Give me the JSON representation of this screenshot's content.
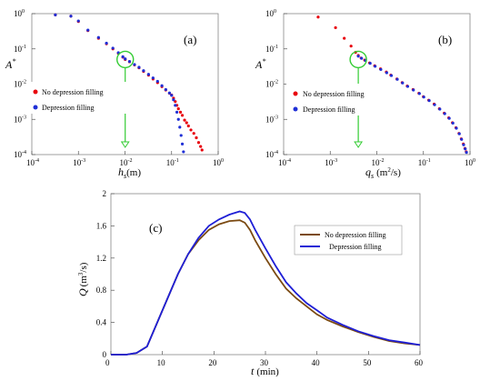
{
  "chart_data": [
    {
      "type": "scatter",
      "panel_label": "(a)",
      "x_scale": "log",
      "y_scale": "log",
      "xlim": [
        0.0001,
        1
      ],
      "ylim": [
        0.0001,
        1
      ],
      "x_ticks": [
        "10",
        "10",
        "10",
        "10",
        "10"
      ],
      "x_tick_exps": [
        "-4",
        "-3",
        "-2",
        "-1",
        "0"
      ],
      "y_ticks": [
        "10",
        "10",
        "10",
        "10",
        "10"
      ],
      "y_tick_exps": [
        "-4",
        "-3",
        "-2",
        "-1",
        "0"
      ],
      "ylabel": "A",
      "ylabel_sup": "*",
      "xlabel": "h",
      "xlabel_sub": "s",
      "xlabel_unit": "(m)",
      "legend_placement": "middle-left",
      "marker": {
        "x": 0.0101,
        "y": 0.05
      },
      "series": [
        {
          "name": "No depression filling",
          "color": "#e8000b",
          "points": [
            [
              0.00032,
              0.92
            ],
            [
              0.00069,
              0.85
            ],
            [
              0.001,
              0.6
            ],
            [
              0.0016,
              0.33
            ],
            [
              0.0027,
              0.2
            ],
            [
              0.004,
              0.14
            ],
            [
              0.0055,
              0.1
            ],
            [
              0.0072,
              0.075
            ],
            [
              0.009,
              0.058
            ],
            [
              0.0101,
              0.05
            ],
            [
              0.0125,
              0.043
            ],
            [
              0.016,
              0.035
            ],
            [
              0.02,
              0.029
            ],
            [
              0.025,
              0.023
            ],
            [
              0.032,
              0.018
            ],
            [
              0.04,
              0.014
            ],
            [
              0.05,
              0.011
            ],
            [
              0.062,
              0.0085
            ],
            [
              0.075,
              0.0068
            ],
            [
              0.09,
              0.0055
            ],
            [
              0.1,
              0.0049
            ],
            [
              0.11,
              0.004
            ],
            [
              0.12,
              0.0032
            ],
            [
              0.13,
              0.0025
            ],
            [
              0.14,
              0.002
            ],
            [
              0.155,
              0.0016
            ],
            [
              0.17,
              0.0013
            ],
            [
              0.19,
              0.00095
            ],
            [
              0.21,
              0.0008
            ],
            [
              0.23,
              0.00065
            ],
            [
              0.26,
              0.0005
            ],
            [
              0.3,
              0.0004
            ],
            [
              0.34,
              0.0003
            ],
            [
              0.38,
              0.00022
            ],
            [
              0.42,
              0.00017
            ],
            [
              0.45,
              0.000135
            ]
          ]
        },
        {
          "name": "Depression filling",
          "color": "#1f2fd6",
          "points": [
            [
              0.00032,
              0.92
            ],
            [
              0.00069,
              0.85
            ],
            [
              0.001,
              0.62
            ],
            [
              0.0016,
              0.34
            ],
            [
              0.0027,
              0.21
            ],
            [
              0.004,
              0.145
            ],
            [
              0.0055,
              0.105
            ],
            [
              0.0072,
              0.078
            ],
            [
              0.009,
              0.06
            ],
            [
              0.0101,
              0.052
            ],
            [
              0.0125,
              0.044
            ],
            [
              0.016,
              0.036
            ],
            [
              0.02,
              0.03
            ],
            [
              0.025,
              0.024
            ],
            [
              0.032,
              0.019
            ],
            [
              0.04,
              0.015
            ],
            [
              0.05,
              0.012
            ],
            [
              0.062,
              0.009
            ],
            [
              0.075,
              0.007
            ],
            [
              0.09,
              0.0056
            ],
            [
              0.1,
              0.0048
            ],
            [
              0.11,
              0.0036
            ],
            [
              0.12,
              0.0025
            ],
            [
              0.13,
              0.0016
            ],
            [
              0.14,
              0.001
            ],
            [
              0.15,
              0.0006
            ],
            [
              0.16,
              0.00035
            ],
            [
              0.17,
              0.0002
            ],
            [
              0.18,
              0.00012
            ]
          ]
        }
      ]
    },
    {
      "type": "scatter",
      "panel_label": "(b)",
      "x_scale": "log",
      "y_scale": "log",
      "xlim": [
        0.0001,
        1
      ],
      "ylim": [
        0.0001,
        1
      ],
      "x_ticks": [
        "10",
        "10",
        "10",
        "10",
        "10"
      ],
      "x_tick_exps": [
        "-4",
        "-3",
        "-2",
        "-1",
        "0"
      ],
      "y_ticks": [
        "10",
        "10",
        "10",
        "10",
        "10"
      ],
      "y_tick_exps": [
        "-4",
        "-3",
        "-2",
        "-1",
        "0"
      ],
      "ylabel": "A",
      "ylabel_sup": "*",
      "xlabel": "q",
      "xlabel_sub": "s",
      "xlabel_unit": "(m",
      "xlabel_unit_sup": "2",
      "xlabel_unit_end": "/s)",
      "legend_placement": "middle-left",
      "marker": {
        "x": 0.004,
        "y": 0.05
      },
      "series": [
        {
          "name": "No depression filling",
          "color": "#e8000b",
          "points": [
            [
              0.00055,
              0.8
            ],
            [
              0.0013,
              0.4
            ],
            [
              0.002,
              0.2
            ],
            [
              0.0028,
              0.12
            ],
            [
              0.0035,
              0.08
            ],
            [
              0.004,
              0.065
            ],
            [
              0.0046,
              0.055
            ],
            [
              0.0055,
              0.048
            ],
            [
              0.007,
              0.04
            ],
            [
              0.009,
              0.033
            ],
            [
              0.012,
              0.027
            ],
            [
              0.016,
              0.022
            ],
            [
              0.02,
              0.018
            ],
            [
              0.027,
              0.014
            ],
            [
              0.035,
              0.011
            ],
            [
              0.045,
              0.0088
            ],
            [
              0.06,
              0.007
            ],
            [
              0.08,
              0.0055
            ],
            [
              0.1,
              0.0044
            ],
            [
              0.13,
              0.0035
            ],
            [
              0.17,
              0.0027
            ],
            [
              0.22,
              0.002
            ],
            [
              0.28,
              0.0015
            ],
            [
              0.35,
              0.0011
            ],
            [
              0.42,
              0.0008
            ],
            [
              0.5,
              0.00058
            ],
            [
              0.58,
              0.0004
            ],
            [
              0.65,
              0.00028
            ],
            [
              0.72,
              0.0002
            ],
            [
              0.78,
              0.00015
            ],
            [
              0.83,
              0.00012
            ]
          ]
        },
        {
          "name": "Depression filling",
          "color": "#1f2fd6",
          "points": [
            [
              0.004,
              0.062
            ],
            [
              0.0047,
              0.054
            ],
            [
              0.0057,
              0.047
            ],
            [
              0.0072,
              0.039
            ],
            [
              0.0092,
              0.032
            ],
            [
              0.0122,
              0.026
            ],
            [
              0.0163,
              0.021
            ],
            [
              0.0205,
              0.0175
            ],
            [
              0.0275,
              0.0137
            ],
            [
              0.0357,
              0.0108
            ],
            [
              0.046,
              0.0086
            ],
            [
              0.061,
              0.0068
            ],
            [
              0.082,
              0.0054
            ],
            [
              0.102,
              0.0043
            ],
            [
              0.133,
              0.0034
            ],
            [
              0.174,
              0.0026
            ],
            [
              0.225,
              0.00195
            ],
            [
              0.287,
              0.00145
            ],
            [
              0.358,
              0.00107
            ],
            [
              0.43,
              0.00078
            ],
            [
              0.51,
              0.00056
            ],
            [
              0.59,
              0.00039
            ],
            [
              0.66,
              0.00027
            ],
            [
              0.73,
              0.00019
            ],
            [
              0.79,
              0.000145
            ],
            [
              0.84,
              0.000115
            ]
          ]
        }
      ]
    },
    {
      "type": "line",
      "panel_label": "(c)",
      "xlim": [
        0,
        60
      ],
      "ylim": [
        0,
        2
      ],
      "x_ticks": [
        "0",
        "10",
        "20",
        "30",
        "40",
        "50",
        "60"
      ],
      "y_ticks": [
        "0",
        "0.4",
        "0.8",
        "1.2",
        "1.6",
        "2"
      ],
      "ylabel": "Q",
      "ylabel_unit": "(m",
      "ylabel_unit_sup": "3",
      "ylabel_unit_end": "/s)",
      "xlabel": "t",
      "xlabel_unit": "(min)",
      "legend_placement": "top-right",
      "series": [
        {
          "name": "No depression filling",
          "color": "#7b4a12",
          "points": [
            [
              0,
              0
            ],
            [
              3,
              0
            ],
            [
              5,
              0.02
            ],
            [
              7,
              0.1
            ],
            [
              9,
              0.4
            ],
            [
              11,
              0.7
            ],
            [
              13,
              1
            ],
            [
              15,
              1.25
            ],
            [
              17,
              1.42
            ],
            [
              19,
              1.55
            ],
            [
              21,
              1.62
            ],
            [
              23,
              1.66
            ],
            [
              25,
              1.67
            ],
            [
              26,
              1.64
            ],
            [
              27,
              1.55
            ],
            [
              28,
              1.42
            ],
            [
              30,
              1.2
            ],
            [
              32,
              1.0
            ],
            [
              34,
              0.82
            ],
            [
              36,
              0.7
            ],
            [
              38,
              0.6
            ],
            [
              40,
              0.5
            ],
            [
              42,
              0.43
            ],
            [
              45,
              0.35
            ],
            [
              48,
              0.28
            ],
            [
              51,
              0.22
            ],
            [
              54,
              0.17
            ],
            [
              57,
              0.14
            ],
            [
              60,
              0.12
            ]
          ]
        },
        {
          "name": "Depression filling",
          "color": "#1f1fd6",
          "points": [
            [
              0,
              0
            ],
            [
              3,
              0
            ],
            [
              5,
              0.02
            ],
            [
              7,
              0.1
            ],
            [
              9,
              0.4
            ],
            [
              11,
              0.7
            ],
            [
              13,
              1
            ],
            [
              15,
              1.25
            ],
            [
              17,
              1.45
            ],
            [
              19,
              1.6
            ],
            [
              21,
              1.68
            ],
            [
              23,
              1.74
            ],
            [
              25,
              1.78
            ],
            [
              26,
              1.76
            ],
            [
              27,
              1.68
            ],
            [
              28,
              1.55
            ],
            [
              30,
              1.32
            ],
            [
              32,
              1.1
            ],
            [
              34,
              0.9
            ],
            [
              36,
              0.76
            ],
            [
              38,
              0.64
            ],
            [
              40,
              0.55
            ],
            [
              42,
              0.46
            ],
            [
              45,
              0.37
            ],
            [
              48,
              0.29
            ],
            [
              51,
              0.23
            ],
            [
              54,
              0.18
            ],
            [
              57,
              0.15
            ],
            [
              60,
              0.12
            ]
          ]
        }
      ]
    }
  ]
}
